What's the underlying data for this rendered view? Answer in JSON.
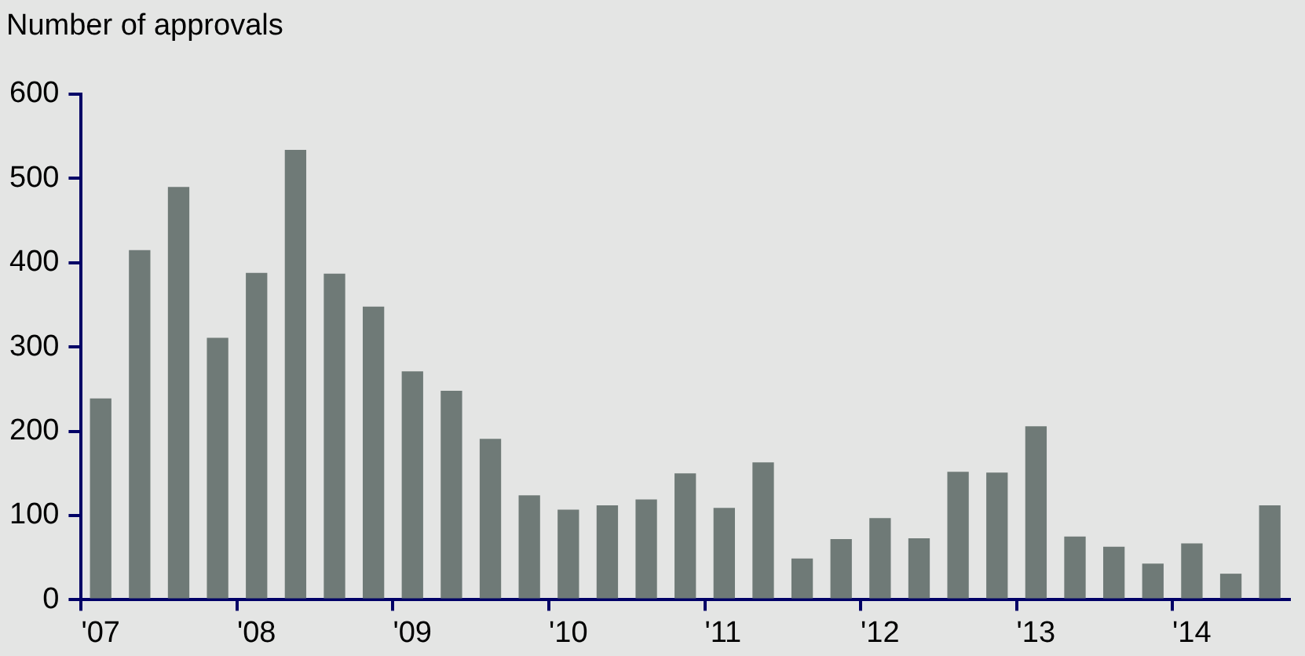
{
  "chart_data": {
    "type": "bar",
    "ylabel": "Number of approvals",
    "categories": [
      "'07",
      null,
      null,
      null,
      "'08",
      null,
      null,
      null,
      "'09",
      null,
      null,
      null,
      "'10",
      null,
      null,
      null,
      "'11",
      null,
      null,
      null,
      "'12",
      null,
      null,
      null,
      "'13",
      null,
      null,
      null,
      "'14",
      null,
      null
    ],
    "values": [
      239,
      415,
      490,
      311,
      388,
      534,
      387,
      348,
      271,
      248,
      191,
      124,
      107,
      112,
      119,
      150,
      109,
      163,
      49,
      72,
      97,
      73,
      152,
      151,
      206,
      75,
      63,
      43,
      67,
      31,
      112
    ],
    "color": "#6f7a77",
    "ylim": [
      0,
      600
    ],
    "yticks": [
      0,
      100,
      200,
      300,
      400,
      500,
      600
    ],
    "grid": false,
    "legend": false
  }
}
